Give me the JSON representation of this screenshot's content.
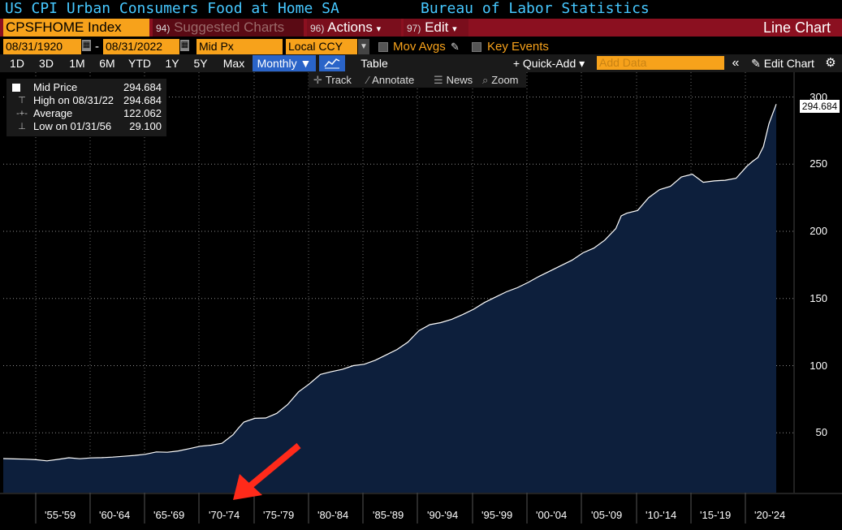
{
  "header": {
    "title": "US CPI Urban Consumers Food at Home SA",
    "source": "Bureau of Labor Statistics"
  },
  "command_bar": {
    "ticker": "CPSFHOME Index",
    "suggested": {
      "num": "94)",
      "label": "Suggested Charts"
    },
    "actions": {
      "num": "96)",
      "label": "Actions",
      "arrow": "▾"
    },
    "edit": {
      "num": "97)",
      "label": "Edit",
      "arrow": "▾"
    },
    "chart_type": "Line Chart"
  },
  "params": {
    "start_date": "08/31/1920",
    "date_sep": "-",
    "end_date": "08/31/2022",
    "price_field": "Mid Px",
    "currency": "Local CCY",
    "mov_avgs": "Mov Avgs",
    "key_events": "Key Events"
  },
  "range_bar": {
    "ranges": [
      "1D",
      "3D",
      "1M",
      "6M",
      "YTD",
      "1Y",
      "5Y",
      "Max"
    ],
    "frequency": "Monthly ▼",
    "table": "Table",
    "quick_add": "+ Quick-Add ▾",
    "add_data_placeholder": "Add Data",
    "collapse": "«",
    "edit_chart": "Edit Chart",
    "settings_icon": "gear-icon"
  },
  "chart_tools": {
    "track": "Track",
    "annotate": "Annotate",
    "news": "News",
    "zoom": "Zoom"
  },
  "legend": {
    "series": {
      "label": "Mid Price",
      "value": "294.684"
    },
    "high": {
      "label": "High on 08/31/22",
      "value": "294.684"
    },
    "average": {
      "label": "Average",
      "value": "122.062"
    },
    "low": {
      "label": "Low on 01/31/56",
      "value": "29.100"
    }
  },
  "last_value_label": "294.684",
  "colors": {
    "background": "#000000",
    "area_fill": "#0d1f3c",
    "line": "#ffffff",
    "accent_orange": "#f7a21b",
    "command_red": "#8b1020",
    "title_blue": "#46c8ff",
    "annotation_arrow": "#ff2a1a"
  },
  "chart_data": {
    "type": "area",
    "x_tick_labels": [
      "'55-'59",
      "'60-'64",
      "'65-'69",
      "'70-'74",
      "'75-'79",
      "'80-'84",
      "'85-'89",
      "'90-'94",
      "'95-'99",
      "'00-'04",
      "'05-'09",
      "'10-'14",
      "'15-'19",
      "'20-'24"
    ],
    "y_tick_labels": [
      "50",
      "100",
      "150",
      "200",
      "250",
      "300"
    ],
    "ylim": [
      0,
      300
    ],
    "xlim": [
      1952,
      2026
    ],
    "grid": true,
    "series": [
      {
        "name": "Mid Price",
        "x": [
          1952,
          1953,
          1954,
          1955,
          1956,
          1957,
          1958,
          1959,
          1960,
          1961,
          1962,
          1963,
          1964,
          1965,
          1966,
          1967,
          1968,
          1969,
          1970,
          1971,
          1972,
          1973,
          1973.5,
          1974,
          1975,
          1976,
          1977,
          1978,
          1979,
          1980,
          1981,
          1982,
          1983,
          1984,
          1985,
          1986,
          1987,
          1988,
          1989,
          1990,
          1991,
          1992,
          1993,
          1994,
          1995,
          1996,
          1997,
          1998,
          1999,
          2000,
          2001,
          2002,
          2003,
          2004,
          2005,
          2006,
          2007,
          2008,
          2008.5,
          2009,
          2010,
          2011,
          2012,
          2013,
          2014,
          2015,
          2016,
          2017,
          2018,
          2019,
          2020,
          2020.5,
          2021,
          2021.5,
          2022,
          2022.67
        ],
        "y": [
          30.8,
          30.6,
          30.4,
          30.0,
          29.1,
          30.2,
          31.4,
          30.7,
          31.3,
          31.5,
          31.9,
          32.5,
          33.2,
          34.0,
          35.8,
          35.5,
          36.5,
          38.2,
          40.0,
          40.8,
          42.2,
          48.5,
          53.5,
          58.0,
          60.8,
          61.0,
          64.5,
          71.0,
          80.5,
          86.5,
          93.5,
          95.5,
          97.2,
          100.0,
          101.0,
          104.0,
          108.0,
          112.0,
          117.5,
          126.0,
          130.5,
          132.0,
          134.5,
          138.0,
          142.0,
          147.0,
          151.0,
          155.0,
          158.0,
          162.0,
          166.5,
          170.5,
          174.5,
          178.5,
          184.0,
          187.5,
          193.5,
          202.0,
          211.5,
          213.5,
          215.5,
          225.0,
          231.0,
          233.5,
          240.5,
          242.5,
          236.5,
          237.5,
          238.0,
          239.5,
          248.5,
          252.0,
          255.0,
          263.0,
          280.0,
          294.684
        ]
      }
    ]
  },
  "annotation": {
    "type": "arrow",
    "points_to_tick": "'70-'74"
  }
}
